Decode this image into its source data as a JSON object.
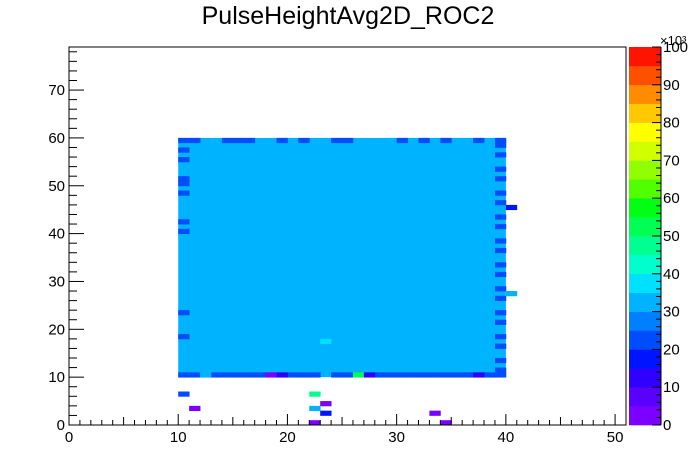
{
  "chart_data": {
    "type": "heatmap",
    "title": "PulseHeightAvg2D_ROC2",
    "xlabel": "",
    "ylabel": "",
    "xlim": [
      0,
      51
    ],
    "ylim": [
      0,
      79
    ],
    "x_ticks": [
      "0",
      "10",
      "20",
      "30",
      "40",
      "50"
    ],
    "y_ticks": [
      "0",
      "10",
      "20",
      "30",
      "40",
      "50",
      "60",
      "70"
    ],
    "z_range": [
      0,
      100000
    ],
    "z_ticks": [
      "0",
      "10",
      "20",
      "30",
      "40",
      "50",
      "60",
      "70",
      "80",
      "90",
      "100"
    ],
    "z_exponent_label": "×10³",
    "colormap": [
      "#7b00ff",
      "#5a00ff",
      "#3000ff",
      "#0014ff",
      "#004dff",
      "#0080ff",
      "#00b3ff",
      "#00e0ff",
      "#00ffcc",
      "#00ff90",
      "#00ff55",
      "#00ff14",
      "#50ff00",
      "#90ff00",
      "#d0ff00",
      "#ffff00",
      "#ffc800",
      "#ff8c00",
      "#ff5000",
      "#ff1400"
    ],
    "main_block": {
      "x_range": [
        10,
        40
      ],
      "y_range": [
        10,
        60
      ],
      "value": 31000
    },
    "cells": [
      {
        "x": 10,
        "y": 59,
        "v": 24000
      },
      {
        "x": 11,
        "y": 59,
        "v": 24000
      },
      {
        "x": 14,
        "y": 59,
        "v": 24000
      },
      {
        "x": 15,
        "y": 59,
        "v": 24000
      },
      {
        "x": 16,
        "y": 59,
        "v": 24000
      },
      {
        "x": 19,
        "y": 59,
        "v": 24000
      },
      {
        "x": 21,
        "y": 59,
        "v": 24000
      },
      {
        "x": 24,
        "y": 59,
        "v": 24000
      },
      {
        "x": 25,
        "y": 59,
        "v": 24000
      },
      {
        "x": 30,
        "y": 59,
        "v": 24000
      },
      {
        "x": 32,
        "y": 59,
        "v": 24000
      },
      {
        "x": 34,
        "y": 59,
        "v": 24000
      },
      {
        "x": 37,
        "y": 59,
        "v": 24000
      },
      {
        "x": 10,
        "y": 57,
        "v": 24000
      },
      {
        "x": 10,
        "y": 55,
        "v": 24000
      },
      {
        "x": 10,
        "y": 51,
        "v": 24000
      },
      {
        "x": 10,
        "y": 50,
        "v": 24000
      },
      {
        "x": 10,
        "y": 48,
        "v": 24000
      },
      {
        "x": 10,
        "y": 42,
        "v": 24000
      },
      {
        "x": 10,
        "y": 40,
        "v": 24000
      },
      {
        "x": 10,
        "y": 23,
        "v": 24000
      },
      {
        "x": 10,
        "y": 18,
        "v": 24000
      },
      {
        "x": 39,
        "y": 59,
        "v": 24000
      },
      {
        "x": 39,
        "y": 58,
        "v": 24000
      },
      {
        "x": 39,
        "y": 56,
        "v": 24000
      },
      {
        "x": 39,
        "y": 53,
        "v": 24000
      },
      {
        "x": 39,
        "y": 51,
        "v": 24000
      },
      {
        "x": 39,
        "y": 48,
        "v": 24000
      },
      {
        "x": 39,
        "y": 46,
        "v": 24000
      },
      {
        "x": 39,
        "y": 43,
        "v": 24000
      },
      {
        "x": 39,
        "y": 41,
        "v": 24000
      },
      {
        "x": 39,
        "y": 38,
        "v": 24000
      },
      {
        "x": 39,
        "y": 36,
        "v": 24000
      },
      {
        "x": 39,
        "y": 33,
        "v": 24000
      },
      {
        "x": 39,
        "y": 31,
        "v": 24000
      },
      {
        "x": 39,
        "y": 28,
        "v": 24000
      },
      {
        "x": 39,
        "y": 26,
        "v": 24000
      },
      {
        "x": 39,
        "y": 23,
        "v": 24000
      },
      {
        "x": 39,
        "y": 21,
        "v": 24000
      },
      {
        "x": 39,
        "y": 18,
        "v": 24000
      },
      {
        "x": 39,
        "y": 16,
        "v": 24000
      },
      {
        "x": 39,
        "y": 13,
        "v": 24000
      },
      {
        "x": 39,
        "y": 11,
        "v": 24000
      },
      {
        "x": 10,
        "y": 10,
        "v": 24000
      },
      {
        "x": 11,
        "y": 10,
        "v": 24000
      },
      {
        "x": 13,
        "y": 10,
        "v": 24000
      },
      {
        "x": 14,
        "y": 10,
        "v": 24000
      },
      {
        "x": 15,
        "y": 10,
        "v": 24000
      },
      {
        "x": 16,
        "y": 10,
        "v": 24000
      },
      {
        "x": 17,
        "y": 10,
        "v": 24000
      },
      {
        "x": 20,
        "y": 10,
        "v": 24000
      },
      {
        "x": 21,
        "y": 10,
        "v": 24000
      },
      {
        "x": 22,
        "y": 10,
        "v": 24000
      },
      {
        "x": 24,
        "y": 10,
        "v": 24000
      },
      {
        "x": 25,
        "y": 10,
        "v": 24000
      },
      {
        "x": 28,
        "y": 10,
        "v": 24000
      },
      {
        "x": 29,
        "y": 10,
        "v": 24000
      },
      {
        "x": 30,
        "y": 10,
        "v": 24000
      },
      {
        "x": 31,
        "y": 10,
        "v": 24000
      },
      {
        "x": 32,
        "y": 10,
        "v": 24000
      },
      {
        "x": 33,
        "y": 10,
        "v": 24000
      },
      {
        "x": 34,
        "y": 10,
        "v": 24000
      },
      {
        "x": 35,
        "y": 10,
        "v": 24000
      },
      {
        "x": 36,
        "y": 10,
        "v": 24000
      },
      {
        "x": 38,
        "y": 10,
        "v": 24000
      },
      {
        "x": 39,
        "y": 10,
        "v": 24000
      },
      {
        "x": 12,
        "y": 10,
        "v": 33000
      },
      {
        "x": 18,
        "y": 10,
        "v": 4000
      },
      {
        "x": 19,
        "y": 10,
        "v": 12000
      },
      {
        "x": 26,
        "y": 10,
        "v": 52000
      },
      {
        "x": 27,
        "y": 10,
        "v": 14000
      },
      {
        "x": 37,
        "y": 10,
        "v": 14000
      },
      {
        "x": 23,
        "y": 17,
        "v": 38000
      },
      {
        "x": 40,
        "y": 45,
        "v": 18000
      },
      {
        "x": 40,
        "y": 27,
        "v": 33000
      },
      {
        "x": 10,
        "y": 6,
        "v": 22000
      },
      {
        "x": 22,
        "y": 6,
        "v": 46000
      },
      {
        "x": 23,
        "y": 4,
        "v": 4000
      },
      {
        "x": 11,
        "y": 3,
        "v": 4000
      },
      {
        "x": 22,
        "y": 3,
        "v": 32000
      },
      {
        "x": 23,
        "y": 2,
        "v": 18000
      },
      {
        "x": 33,
        "y": 2,
        "v": 4000
      },
      {
        "x": 22,
        "y": 0,
        "v": 4000
      },
      {
        "x": 34,
        "y": 0,
        "v": 4000
      }
    ]
  }
}
